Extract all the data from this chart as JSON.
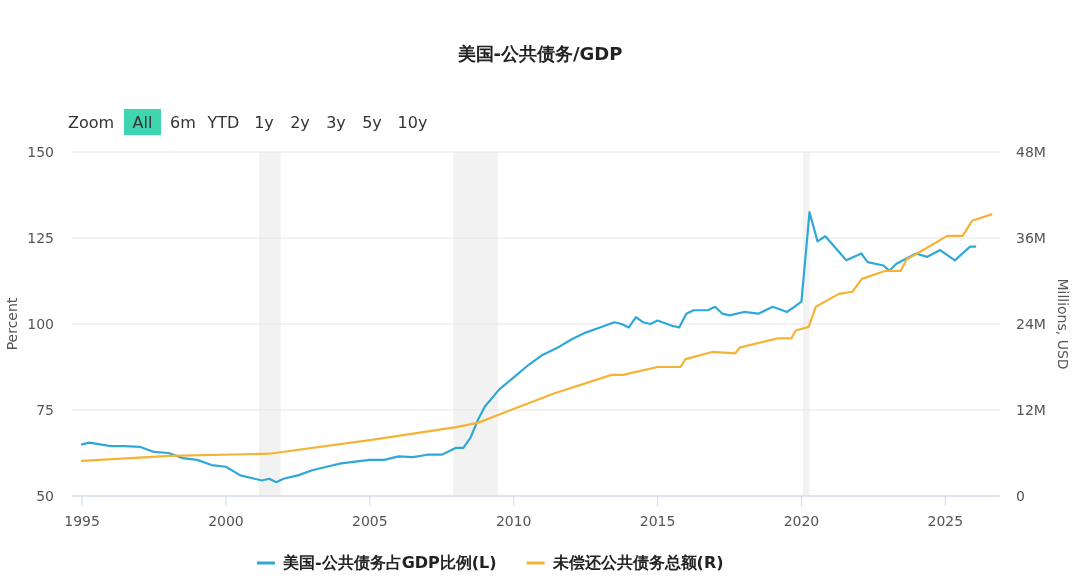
{
  "chart_data": {
    "type": "line",
    "title": "美国-公共债务/GDP",
    "annotations": [
      "Zoom",
      "All",
      "6m",
      "YTD",
      "1y",
      "2y",
      "3y",
      "5y",
      "10y"
    ],
    "ylabel": "Percent",
    "y2label": "Millions, USD",
    "xlim": [
      1994.65,
      2026.9
    ],
    "xticks": [
      1995,
      2000,
      2005,
      2010,
      2015,
      2020,
      2025
    ],
    "ylim": [
      50,
      150
    ],
    "yticks": [
      50,
      75,
      100,
      125,
      150
    ],
    "y2lim": [
      0,
      48
    ],
    "y2ticks": [
      0,
      {
        "value": 12,
        "label": "12M"
      },
      {
        "value": 24,
        "label": "24M"
      },
      {
        "value": 36,
        "label": "36M"
      },
      {
        "value": 48,
        "label": "48M"
      }
    ],
    "grid": "y",
    "legend": "bottom",
    "bands": [
      {
        "axis": "x",
        "from": 2001.15,
        "to": 2001.9,
        "color": "#f2f2f2"
      },
      {
        "axis": "x",
        "from": 2007.9,
        "to": 2009.45,
        "color": "#f2f2f2"
      },
      {
        "axis": "x",
        "from": 2020.05,
        "to": 2020.28,
        "color": "#f2f2f2"
      }
    ],
    "series": [
      {
        "name": "美国-公共债务占GDP比例(L)",
        "color": "#2fa8d8",
        "axis": "y",
        "x": [
          1995,
          1995.25,
          1996,
          1996.5,
          1997,
          1997.5,
          1998,
          1998.5,
          1999,
          1999.5,
          2000,
          2000.5,
          2001,
          2001.25,
          2001.5,
          2001.75,
          2002,
          2002.5,
          2003,
          2003.5,
          2004,
          2004.5,
          2005,
          2005.5,
          2006,
          2006.5,
          2007,
          2007.5,
          2008,
          2008.25,
          2008.5,
          2008.75,
          2009,
          2009.5,
          2010,
          2010.5,
          2011,
          2011.5,
          2012,
          2012.5,
          2013,
          2013.5,
          2013.75,
          2014,
          2014.25,
          2014.5,
          2014.75,
          2015,
          2015.5,
          2015.75,
          2016,
          2016.25,
          2016.75,
          2017,
          2017.25,
          2017.5,
          2018,
          2018.5,
          2019,
          2019.5,
          2019.75,
          2020,
          2020.28,
          2020.56,
          2020.83,
          2021.56,
          2022.08,
          2022.3,
          2022.85,
          2023.05,
          2023.3,
          2023.98,
          2024.36,
          2024.82,
          2025.33,
          2025.86,
          2026.04
        ],
        "values": [
          65,
          65.5,
          64.5,
          64.5,
          64.3,
          62.8,
          62.5,
          61,
          60.5,
          59,
          58.5,
          56,
          55,
          54.5,
          55,
          54,
          55,
          56,
          57.5,
          58.5,
          59.5,
          60,
          60.5,
          60.5,
          61.5,
          61.3,
          62,
          62,
          64,
          64,
          67,
          72,
          76,
          81,
          84.5,
          88,
          91,
          93,
          95.5,
          97.5,
          99,
          100.5,
          100,
          99,
          102,
          100.5,
          100,
          101,
          99.5,
          99,
          103,
          104,
          104,
          105,
          103,
          102.5,
          103.5,
          103,
          105,
          103.5,
          105,
          106.5,
          132.5,
          124,
          125.5,
          118.5,
          120.5,
          118,
          117,
          115.5,
          117.5,
          120.5,
          119.5,
          121.5,
          118.5,
          122.5,
          122.5
        ]
      },
      {
        "name": "未偿还公共债务总额(R)",
        "color": "#f5b335",
        "axis": "y2",
        "x": [
          1995,
          1998.05,
          2001.5,
          2005,
          2008,
          2008.75,
          2009.97,
          2011.4,
          2013.4,
          2013.8,
          2015.0,
          2015.8,
          2015.97,
          2016.9,
          2017.7,
          2017.85,
          2019.17,
          2019.65,
          2019.8,
          2020.25,
          2020.5,
          2021.3,
          2021.77,
          2022.1,
          2022.9,
          2023.45,
          2023.65,
          2024.26,
          2025.07,
          2025.6,
          2025.93,
          2026.6
        ],
        "values": [
          4.9,
          5.6,
          5.9,
          7.8,
          9.6,
          10.2,
          12.1,
          14.3,
          16.9,
          16.9,
          18.0,
          18.0,
          19.1,
          20.1,
          19.9,
          20.7,
          22.0,
          22.0,
          23.1,
          23.6,
          26.4,
          28.2,
          28.5,
          30.3,
          31.4,
          31.4,
          33.0,
          34.4,
          36.3,
          36.3,
          38.4,
          39.3
        ]
      }
    ]
  }
}
